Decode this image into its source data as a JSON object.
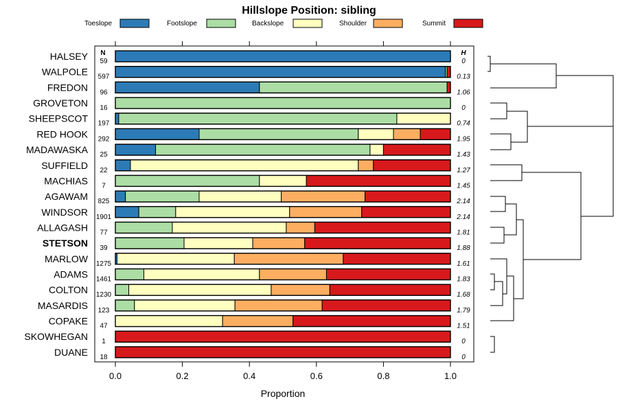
{
  "chart_data": {
    "type": "bar",
    "stacked": true,
    "orientation": "horizontal",
    "title": "Hillslope Position: sibling",
    "xlabel": "Proportion",
    "xlim": [
      0,
      1
    ],
    "x_ticks": [
      "0.0",
      "0.2",
      "0.4",
      "0.6",
      "0.8",
      "1.0"
    ],
    "n_header": "N",
    "h_header": "H",
    "highlight": "STETSON",
    "legend": [
      {
        "name": "Toeslope",
        "color": "#2c7bb6"
      },
      {
        "name": "Footslope",
        "color": "#abdda4"
      },
      {
        "name": "Backslope",
        "color": "#ffffbf"
      },
      {
        "name": "Shoulder",
        "color": "#fdae61"
      },
      {
        "name": "Summit",
        "color": "#d7191c"
      }
    ],
    "categories": [
      "HALSEY",
      "WALPOLE",
      "FREDON",
      "GROVETON",
      "SHEEPSCOT",
      "RED HOOK",
      "MADAWASKA",
      "SUFFIELD",
      "MACHIAS",
      "AGAWAM",
      "WINDSOR",
      "ALLAGASH",
      "STETSON",
      "MARLOW",
      "ADAMS",
      "COLTON",
      "MASARDIS",
      "COPAKE",
      "SKOWHEGAN",
      "DUANE"
    ],
    "n": [
      "59",
      "597",
      "96",
      "16",
      "197",
      "292",
      "25",
      "22",
      "7",
      "825",
      "1901",
      "77",
      "39",
      "1275",
      "1461",
      "1230",
      "123",
      "47",
      "1",
      "18"
    ],
    "h": [
      "0",
      "0.13",
      "1.06",
      "0",
      "0.74",
      "1.95",
      "1.43",
      "1.27",
      "1.45",
      "2.14",
      "2.14",
      "1.81",
      "1.88",
      "1.61",
      "1.83",
      "1.68",
      "1.79",
      "1.51",
      "0",
      "0"
    ],
    "series": [
      {
        "name": "Toeslope",
        "values": [
          1.0,
          0.985,
          0.43,
          0.0,
          0.01,
          0.25,
          0.12,
          0.045,
          0.0,
          0.03,
          0.07,
          0.0,
          0.0,
          0.005,
          0.0,
          0.0,
          0.0,
          0.0,
          0.0,
          0.0
        ]
      },
      {
        "name": "Footslope",
        "values": [
          0.0,
          0.005,
          0.56,
          1.0,
          0.83,
          0.475,
          0.64,
          0.0,
          0.43,
          0.22,
          0.11,
          0.17,
          0.205,
          0.0,
          0.085,
          0.04,
          0.057,
          0.0,
          0.0,
          0.0
        ]
      },
      {
        "name": "Backslope",
        "values": [
          0.0,
          0.0,
          0.0,
          0.0,
          0.16,
          0.105,
          0.04,
          0.68,
          0.14,
          0.245,
          0.34,
          0.34,
          0.205,
          0.35,
          0.345,
          0.425,
          0.3,
          0.32,
          0.0,
          0.0
        ]
      },
      {
        "name": "Shoulder",
        "values": [
          0.0,
          0.0,
          0.0,
          0.0,
          0.0,
          0.08,
          0.0,
          0.045,
          0.0,
          0.25,
          0.215,
          0.085,
          0.155,
          0.325,
          0.2,
          0.175,
          0.26,
          0.21,
          0.0,
          0.0
        ]
      },
      {
        "name": "Summit",
        "values": [
          0.0,
          0.01,
          0.01,
          0.0,
          0.0,
          0.09,
          0.2,
          0.23,
          0.43,
          0.255,
          0.265,
          0.405,
          0.435,
          0.32,
          0.37,
          0.36,
          0.383,
          0.47,
          1.0,
          1.0
        ]
      }
    ]
  }
}
